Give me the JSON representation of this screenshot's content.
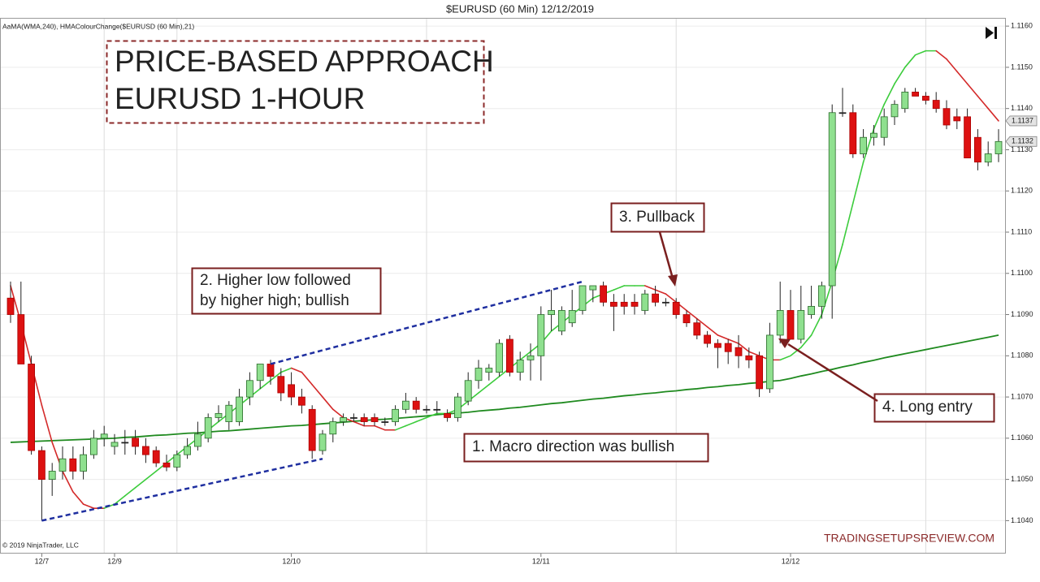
{
  "chart_data": {
    "type": "candlestick",
    "title": "$EURUSD (60 Min)  12/12/2019",
    "indicator_label": "AaMA(WMA,240), HMAColourChange($EURUSD (60 Min),21)",
    "headline": [
      "PRICE-BASED APPROACH",
      "EURUSD 1-HOUR"
    ],
    "annotations": {
      "macro": "1. Macro direction was bullish",
      "higher_low": [
        "2. Higher low followed",
        "by higher high; bullish"
      ],
      "pullback": "3. Pullback",
      "entry": "4. Long entry"
    },
    "copyright": "© 2019 NinjaTrader, LLC",
    "watermark": "TRADINGSETUPSREVIEW.COM",
    "categories": [
      null,
      null,
      null,
      "12/7",
      null,
      null,
      null,
      null,
      null,
      null,
      "12/9",
      null,
      null,
      null,
      null,
      null,
      null,
      null,
      null,
      null,
      null,
      null,
      null,
      null,
      null,
      null,
      null,
      "12/10",
      null,
      null,
      null,
      null,
      null,
      null,
      null,
      null,
      null,
      null,
      null,
      null,
      null,
      null,
      null,
      null,
      null,
      null,
      null,
      null,
      null,
      null,
      null,
      "12/11",
      null,
      null,
      null,
      null,
      null,
      null,
      null,
      null,
      null,
      null,
      null,
      null,
      null,
      null,
      null,
      null,
      null,
      null,
      null,
      null,
      null,
      null,
      null,
      "12/12",
      null,
      null,
      null,
      null,
      null,
      null,
      null,
      null,
      null,
      null,
      null,
      null,
      null,
      null,
      null,
      null,
      null,
      null,
      null,
      null
    ],
    "open": [
      1.1094,
      1.109,
      1.1078,
      1.1057,
      1.105,
      1.1052,
      1.1055,
      1.1052,
      1.1056,
      1.106,
      1.1058,
      1.1059,
      1.106,
      1.1058,
      1.1057,
      1.1054,
      1.1053,
      1.1056,
      1.1058,
      1.106,
      1.1065,
      1.1064,
      1.1064,
      1.107,
      1.1074,
      1.1078,
      1.1075,
      1.1073,
      1.107,
      1.1067,
      1.1057,
      1.1061,
      1.1064,
      1.1065,
      1.1065,
      1.1065,
      1.1064,
      1.1064,
      1.1067,
      1.1069,
      1.1067,
      1.1067,
      1.1066,
      1.1065,
      1.1069,
      1.1074,
      1.1076,
      1.1076,
      1.1084,
      1.1076,
      1.1079,
      1.108,
      1.109,
      1.1086,
      1.1088,
      1.1091,
      1.1096,
      1.1097,
      1.1093,
      1.1093,
      1.1093,
      1.1091,
      1.1095,
      1.1093,
      1.1093,
      1.109,
      1.1088,
      1.1085,
      1.1083,
      1.1083,
      1.1082,
      1.108,
      1.108,
      1.1072,
      1.1085,
      1.1091,
      1.1084,
      1.109,
      1.1092,
      1.1097,
      1.1139,
      1.1139,
      1.1129,
      1.1133,
      1.1133,
      1.1138,
      1.114,
      1.1144,
      1.1143,
      1.1142,
      1.114,
      1.1138,
      1.1138,
      1.1133,
      1.1127,
      1.1129
    ],
    "high": [
      1.1098,
      1.1098,
      1.108,
      1.1058,
      1.1054,
      1.1058,
      1.1058,
      1.1058,
      1.1062,
      1.1063,
      1.1061,
      1.1062,
      1.1062,
      1.106,
      1.1058,
      1.1056,
      1.1057,
      1.106,
      1.1064,
      1.1066,
      1.1068,
      1.1069,
      1.1072,
      1.1076,
      1.1078,
      1.1079,
      1.1077,
      1.1076,
      1.1072,
      1.1068,
      1.1062,
      1.1065,
      1.1066,
      1.1066,
      1.1066,
      1.1066,
      1.1065,
      1.1068,
      1.1071,
      1.107,
      1.1068,
      1.1069,
      1.1067,
      1.1071,
      1.1076,
      1.1079,
      1.1078,
      1.1084,
      1.1085,
      1.1081,
      1.1083,
      1.1092,
      1.1096,
      1.1092,
      1.1096,
      1.1097,
      1.1097,
      1.1098,
      1.1095,
      1.1095,
      1.1095,
      1.1096,
      1.1097,
      1.1094,
      1.1094,
      1.1091,
      1.1089,
      1.1086,
      1.1084,
      1.1084,
      1.1085,
      1.1082,
      1.1081,
      1.1088,
      1.1098,
      1.1096,
      1.1097,
      1.1097,
      1.1098,
      1.1141,
      1.1145,
      1.1141,
      1.1135,
      1.1136,
      1.114,
      1.1142,
      1.1145,
      1.1145,
      1.1144,
      1.1144,
      1.1142,
      1.114,
      1.114,
      1.1135,
      1.1132,
      1.1135
    ],
    "low": [
      1.1088,
      1.1078,
      1.1056,
      1.104,
      1.1046,
      1.105,
      1.105,
      1.105,
      1.1055,
      1.1058,
      1.1056,
      1.1056,
      1.1056,
      1.1054,
      1.1053,
      1.1052,
      1.1052,
      1.1055,
      1.1057,
      1.1059,
      1.1064,
      1.1062,
      1.1063,
      1.1068,
      1.1072,
      1.1073,
      1.1069,
      1.1068,
      1.1066,
      1.1055,
      1.1056,
      1.1059,
      1.1063,
      1.1064,
      1.1063,
      1.1063,
      1.1063,
      1.1063,
      1.1066,
      1.1066,
      1.1066,
      1.1066,
      1.1064,
      1.1064,
      1.1068,
      1.1072,
      1.1074,
      1.1075,
      1.1075,
      1.1074,
      1.1074,
      1.1074,
      1.1086,
      1.1085,
      1.1087,
      1.109,
      1.1093,
      1.1092,
      1.1086,
      1.109,
      1.109,
      1.109,
      1.1092,
      1.1092,
      1.1089,
      1.1087,
      1.1084,
      1.1082,
      1.1077,
      1.1078,
      1.1077,
      1.1077,
      1.107,
      1.1071,
      1.1083,
      1.1084,
      1.1083,
      1.1089,
      1.1089,
      1.1089,
      1.1138,
      1.1128,
      1.1128,
      1.1131,
      1.1131,
      1.1136,
      1.1139,
      1.1143,
      1.1141,
      1.1139,
      1.1135,
      1.1135,
      1.1128,
      1.1125,
      1.1126,
      1.1127
    ],
    "close": [
      1.109,
      1.1078,
      1.1057,
      1.105,
      1.1052,
      1.1055,
      1.1052,
      1.1056,
      1.106,
      1.1061,
      1.1059,
      1.1059,
      1.1058,
      1.1056,
      1.1054,
      1.1053,
      1.1056,
      1.1058,
      1.1061,
      1.1065,
      1.1066,
      1.1068,
      1.107,
      1.1074,
      1.1078,
      1.1075,
      1.1071,
      1.107,
      1.1068,
      1.1057,
      1.1061,
      1.1064,
      1.1065,
      1.1065,
      1.1064,
      1.1064,
      1.1064,
      1.1067,
      1.1069,
      1.1067,
      1.1067,
      1.1067,
      1.1065,
      1.107,
      1.1074,
      1.1077,
      1.1077,
      1.1083,
      1.1076,
      1.1079,
      1.108,
      1.109,
      1.1091,
      1.1091,
      1.1091,
      1.1097,
      1.1097,
      1.1093,
      1.1092,
      1.1092,
      1.1092,
      1.1095,
      1.1093,
      1.1093,
      1.109,
      1.1088,
      1.1085,
      1.1083,
      1.1082,
      1.1081,
      1.108,
      1.1079,
      1.1072,
      1.1085,
      1.1091,
      1.1084,
      1.1091,
      1.1092,
      1.1097,
      1.1139,
      1.1139,
      1.1129,
      1.1133,
      1.1134,
      1.1138,
      1.1141,
      1.1144,
      1.1143,
      1.1142,
      1.114,
      1.1136,
      1.1137,
      1.1128,
      1.1127,
      1.1129,
      1.1132
    ],
    "up_color": "#8fe08f",
    "down_color": "#dd1111",
    "lines": [
      {
        "kind": "wma",
        "color": "#1f8a1f",
        "values": [
          1.1059,
          1.10591,
          1.10592,
          1.10593,
          1.10594,
          1.10595,
          1.10596,
          1.10597,
          1.10598,
          1.10599,
          1.106,
          1.10602,
          1.10603,
          1.10605,
          1.10607,
          1.10608,
          1.1061,
          1.10612,
          1.10613,
          1.10615,
          1.10617,
          1.10618,
          1.1062,
          1.10622,
          1.10624,
          1.10626,
          1.10628,
          1.1063,
          1.10631,
          1.10633,
          1.10635,
          1.10637,
          1.10639,
          1.10641,
          1.10643,
          1.10645,
          1.10646,
          1.10648,
          1.1065,
          1.10652,
          1.10654,
          1.10657,
          1.10659,
          1.10661,
          1.10663,
          1.10666,
          1.10668,
          1.1067,
          1.10673,
          1.10675,
          1.10678,
          1.10681,
          1.10684,
          1.10686,
          1.10689,
          1.10692,
          1.10695,
          1.10697,
          1.107,
          1.10703,
          1.10705,
          1.10708,
          1.1071,
          1.10713,
          1.10715,
          1.10718,
          1.1072,
          1.10723,
          1.10725,
          1.10728,
          1.1073,
          1.10733,
          1.10735,
          1.10738,
          1.1074,
          1.10745,
          1.10751,
          1.10756,
          1.10762,
          1.10767,
          1.10773,
          1.10778,
          1.10784,
          1.10789,
          1.10795,
          1.108,
          1.10805,
          1.1081,
          1.10815,
          1.1082,
          1.10825,
          1.1083,
          1.10835,
          1.1084,
          1.10845,
          1.1085
        ]
      },
      {
        "kind": "hma",
        "rising_color": "#3ccc3c",
        "falling_color": "#d42a2a",
        "values": [
          1.1097,
          1.1088,
          1.1078,
          1.1068,
          1.1059,
          1.1052,
          1.1047,
          1.1044,
          1.1043,
          1.1043,
          1.1044,
          1.1046,
          1.1048,
          1.105,
          1.1052,
          1.1054,
          1.1056,
          1.1058,
          1.106,
          1.1062,
          1.1064,
          1.1066,
          1.1068,
          1.107,
          1.1072,
          1.1074,
          1.1076,
          1.1077,
          1.1076,
          1.1073,
          1.107,
          1.1067,
          1.1065,
          1.1064,
          1.1063,
          1.1063,
          1.1062,
          1.1062,
          1.1063,
          1.1064,
          1.1065,
          1.1066,
          1.1066,
          1.1067,
          1.1069,
          1.1071,
          1.1073,
          1.1075,
          1.1077,
          1.1079,
          1.1081,
          1.1083,
          1.1086,
          1.1088,
          1.109,
          1.1092,
          1.1094,
          1.1095,
          1.1096,
          1.1097,
          1.1097,
          1.1097,
          1.1096,
          1.1095,
          1.1093,
          1.1091,
          1.1089,
          1.1087,
          1.1085,
          1.1084,
          1.1083,
          1.1081,
          1.108,
          1.1079,
          1.1079,
          1.108,
          1.1082,
          1.1085,
          1.109,
          1.1098,
          1.1107,
          1.1117,
          1.1127,
          1.1135,
          1.1141,
          1.1146,
          1.115,
          1.1153,
          1.1154,
          1.1154,
          1.1152,
          1.1149,
          1.1146,
          1.1143,
          1.114,
          1.1137
        ]
      }
    ],
    "trend_lines": [
      {
        "color": "#1f2fa0",
        "x": [
          3,
          30
        ],
        "y": [
          1.104,
          1.1055
        ]
      },
      {
        "color": "#1f2fa0",
        "x": [
          25,
          55
        ],
        "y": [
          1.1078,
          1.1098
        ]
      }
    ],
    "price_tags": [
      1.1137,
      1.1132
    ],
    "xgrid": [
      9,
      16,
      40,
      64,
      88
    ],
    "grid": true,
    "ylim": [
      1.1032,
      1.1162
    ],
    "yticks": [
      {
        "value": 1.104,
        "label": "1.1040"
      },
      {
        "value": 1.105,
        "label": "1.1050"
      },
      {
        "value": 1.106,
        "label": "1.1060"
      },
      {
        "value": 1.107,
        "label": "1.1070"
      },
      {
        "value": 1.108,
        "label": "1.1080"
      },
      {
        "value": 1.109,
        "label": "1.1090"
      },
      {
        "value": 1.11,
        "label": "1.1100"
      },
      {
        "value": 1.111,
        "label": "1.1110"
      },
      {
        "value": 1.112,
        "label": "1.1120"
      },
      {
        "value": 1.113,
        "label": "1.1130"
      },
      {
        "value": 1.114,
        "label": "1.1140"
      },
      {
        "value": 1.115,
        "label": "1.1150"
      },
      {
        "value": 1.116,
        "label": "1.1160"
      }
    ]
  }
}
